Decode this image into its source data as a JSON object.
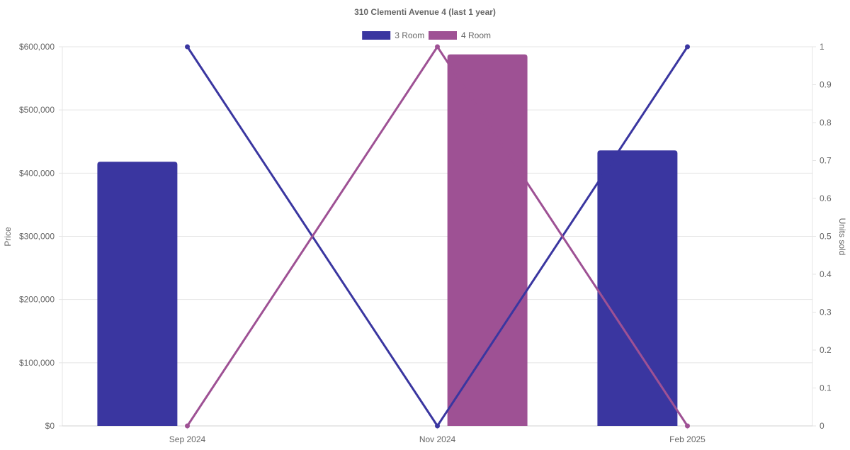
{
  "chart_data": {
    "type": "bar",
    "title": "310 Clementi Avenue 4 (last 1 year)",
    "categories": [
      "Sep 2024",
      "Nov 2024",
      "Feb 2025"
    ],
    "y_left": {
      "label": "Price",
      "ylim": [
        0,
        600000
      ],
      "ticks": [
        0,
        100000,
        200000,
        300000,
        400000,
        500000,
        600000
      ],
      "tick_labels": [
        "$0",
        "$100,000",
        "$200,000",
        "$300,000",
        "$400,000",
        "$500,000",
        "$600,000"
      ]
    },
    "y_right": {
      "label": "Units sold",
      "ylim": [
        0,
        1
      ],
      "ticks": [
        0,
        0.1,
        0.2,
        0.3,
        0.4,
        0.5,
        0.6,
        0.7,
        0.8,
        0.9,
        1
      ],
      "tick_labels": [
        "0",
        "0.1",
        "0.2",
        "0.3",
        "0.4",
        "0.5",
        "0.6",
        "0.7",
        "0.8",
        "0.9",
        "1"
      ]
    },
    "grid": true,
    "legend_position": "top-center",
    "series": [
      {
        "name": "3 Room",
        "color": "#3a36a0",
        "bar_values": [
          418000,
          null,
          436000
        ],
        "line_values": [
          1,
          0,
          1
        ]
      },
      {
        "name": "4 Room",
        "color": "#9e5194",
        "bar_values": [
          null,
          588000,
          null
        ],
        "line_values": [
          0,
          1,
          0
        ]
      }
    ]
  }
}
